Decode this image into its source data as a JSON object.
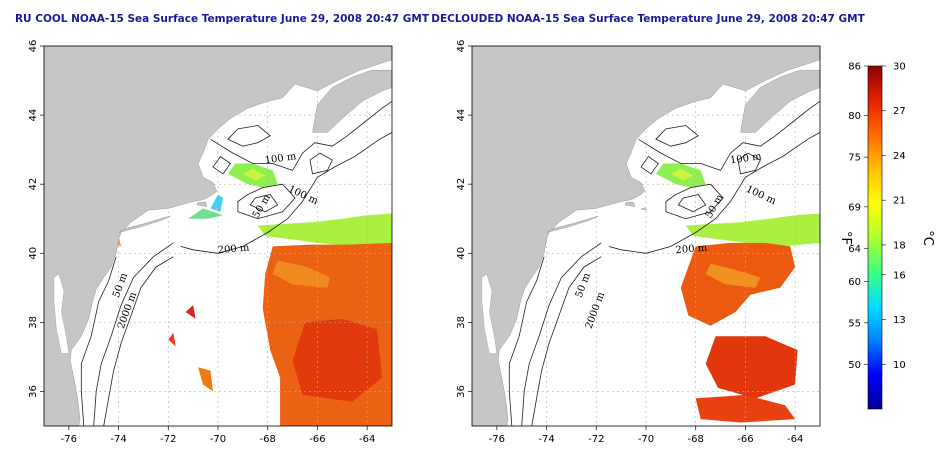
{
  "panels": [
    {
      "id": "left",
      "title": "RU COOL NOAA-15 Sea Surface Temperature June 29, 2008 20:47 GMT",
      "contour_labels": [
        {
          "text": "100 m",
          "lon": -68.1,
          "lat": 42.6,
          "rot": -8
        },
        {
          "text": "100 m",
          "lon": -67.2,
          "lat": 41.8,
          "rot": 25
        },
        {
          "text": "50 m",
          "lon": -68.4,
          "lat": 41.0,
          "rot": -60
        },
        {
          "text": "200 m",
          "lon": -70.0,
          "lat": 40.0,
          "rot": -5
        },
        {
          "text": "50 m",
          "lon": -74.0,
          "lat": 38.7,
          "rot": -70
        },
        {
          "text": "2000 m",
          "lon": -73.8,
          "lat": 37.8,
          "rot": -70
        }
      ]
    },
    {
      "id": "right",
      "title": "DECLOUDED NOAA-15 Sea Surface Temperature June 29, 2008 20:47 GMT",
      "contour_labels": [
        {
          "text": "100 m",
          "lon": -66.6,
          "lat": 42.6,
          "rot": -8
        },
        {
          "text": "100 m",
          "lon": -66.0,
          "lat": 41.8,
          "rot": 25
        },
        {
          "text": "50 m",
          "lon": -67.4,
          "lat": 41.0,
          "rot": -60
        },
        {
          "text": "200 m",
          "lon": -68.8,
          "lat": 40.0,
          "rot": -5
        },
        {
          "text": "50 m",
          "lon": -72.6,
          "lat": 38.7,
          "rot": -70
        },
        {
          "text": "2000 m",
          "lon": -72.2,
          "lat": 37.8,
          "rot": -70
        }
      ]
    }
  ],
  "axes": {
    "lon_ticks": [
      "-76",
      "-74",
      "-72",
      "-70",
      "-68",
      "-66",
      "-64"
    ],
    "lat_ticks": [
      "36",
      "38",
      "40",
      "42",
      "44",
      "46"
    ],
    "lon_range": [
      -77,
      -63
    ],
    "lat_range": [
      35,
      46
    ]
  },
  "colorbar": {
    "fahrenheit_ticks": [
      "86",
      "80",
      "75",
      "69",
      "64",
      "60",
      "55",
      "50"
    ],
    "celsius_ticks": [
      "30",
      "27",
      "24",
      "21",
      "18",
      "16",
      "13",
      "10"
    ],
    "fahrenheit_unit": "°F",
    "celsius_unit": "°C",
    "range_c": [
      7,
      30
    ],
    "colors": [
      "#00008f",
      "#0000ff",
      "#0080ff",
      "#00e0ff",
      "#40ff80",
      "#b0ff30",
      "#ffff00",
      "#ffc000",
      "#ff6a00",
      "#e62000",
      "#8b0000"
    ]
  },
  "colors": {
    "land": "#c6c6c6",
    "ocean": "#ffffff",
    "title": "#1a1a99",
    "grid": "#b0b0b0",
    "contour": "#1f1f1f"
  }
}
